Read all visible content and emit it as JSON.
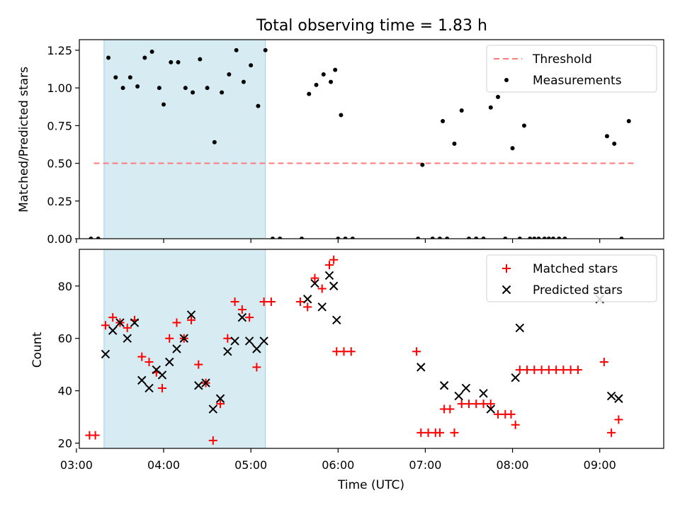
{
  "title": "Total observing time = 1.83 h",
  "chart_data": [
    {
      "type": "scatter",
      "xlabel": "",
      "ylabel": "Matched/Predicted stars",
      "xlim": [
        "03:02",
        "09:44"
      ],
      "ylim": [
        0,
        1.32
      ],
      "yticks": [
        0,
        0.25,
        0.5,
        0.75,
        1.0,
        1.25
      ],
      "ytick_labels": [
        "0.00",
        "0.25",
        "0.50",
        "0.75",
        "1.00",
        "1.25"
      ],
      "highlight_span": [
        "03:19",
        "05:10"
      ],
      "legend": {
        "position": "upper right",
        "entries": [
          "Threshold",
          "Measurements"
        ]
      },
      "threshold": {
        "name": "Threshold",
        "value": 0.5,
        "x_range": [
          "03:12",
          "09:24"
        ],
        "color": "#ff7a7a",
        "style": "dashed"
      },
      "series": [
        {
          "name": "Measurements",
          "marker": "dot",
          "color": "#000000",
          "points": [
            [
              "03:10",
              0.0
            ],
            [
              "03:15",
              0.0
            ],
            [
              "03:22",
              1.2
            ],
            [
              "03:27",
              1.07
            ],
            [
              "03:32",
              1.0
            ],
            [
              "03:37",
              1.07
            ],
            [
              "03:42",
              1.01
            ],
            [
              "03:47",
              1.2
            ],
            [
              "03:52",
              1.24
            ],
            [
              "03:57",
              1.0
            ],
            [
              "04:00",
              0.89
            ],
            [
              "04:05",
              1.17
            ],
            [
              "04:10",
              1.17
            ],
            [
              "04:15",
              1.0
            ],
            [
              "04:20",
              0.97
            ],
            [
              "04:25",
              1.19
            ],
            [
              "04:30",
              1.0
            ],
            [
              "04:35",
              0.64
            ],
            [
              "04:40",
              0.97
            ],
            [
              "04:45",
              1.09
            ],
            [
              "04:50",
              1.25
            ],
            [
              "04:55",
              1.04
            ],
            [
              "05:00",
              1.15
            ],
            [
              "05:05",
              0.88
            ],
            [
              "05:10",
              1.25
            ],
            [
              "05:15",
              0.0
            ],
            [
              "05:20",
              0.0
            ],
            [
              "05:35",
              0.0
            ],
            [
              "05:40",
              0.96
            ],
            [
              "05:45",
              1.02
            ],
            [
              "05:50",
              1.09
            ],
            [
              "05:55",
              1.04
            ],
            [
              "05:58",
              1.12
            ],
            [
              "06:00",
              0.0
            ],
            [
              "06:02",
              0.82
            ],
            [
              "06:05",
              0.0
            ],
            [
              "06:10",
              0.0
            ],
            [
              "06:55",
              0.0
            ],
            [
              "06:58",
              0.49
            ],
            [
              "07:05",
              0.0
            ],
            [
              "07:10",
              0.0
            ],
            [
              "07:12",
              0.78
            ],
            [
              "07:15",
              0.0
            ],
            [
              "07:20",
              0.63
            ],
            [
              "07:25",
              0.85
            ],
            [
              "07:30",
              0.0
            ],
            [
              "07:35",
              0.0
            ],
            [
              "07:40",
              0.0
            ],
            [
              "07:45",
              0.87
            ],
            [
              "07:50",
              0.94
            ],
            [
              "07:55",
              0.0
            ],
            [
              "08:00",
              0.6
            ],
            [
              "08:05",
              0.0
            ],
            [
              "08:08",
              0.75
            ],
            [
              "08:12",
              0.0
            ],
            [
              "08:15",
              0.0
            ],
            [
              "08:18",
              0.0
            ],
            [
              "08:22",
              0.0
            ],
            [
              "08:25",
              0.0
            ],
            [
              "08:28",
              0.0
            ],
            [
              "08:32",
              0.0
            ],
            [
              "08:36",
              0.0
            ],
            [
              "09:05",
              0.68
            ],
            [
              "09:10",
              0.63
            ],
            [
              "09:15",
              0.0
            ],
            [
              "09:20",
              0.78
            ]
          ]
        }
      ]
    },
    {
      "type": "scatter",
      "xlabel": "Time (UTC)",
      "ylabel": "Count",
      "xlim": [
        "03:02",
        "09:44"
      ],
      "ylim": [
        18,
        94
      ],
      "yticks": [
        20,
        40,
        60,
        80
      ],
      "ytick_labels": [
        "20",
        "40",
        "60",
        "80"
      ],
      "xticks": [
        "03:00",
        "04:00",
        "05:00",
        "06:00",
        "07:00",
        "08:00",
        "09:00"
      ],
      "xtick_labels": [
        "03:00",
        "04:00",
        "05:00",
        "06:00",
        "07:00",
        "08:00",
        "09:00"
      ],
      "highlight_span": [
        "03:19",
        "05:10"
      ],
      "legend": {
        "position": "upper right",
        "entries": [
          "Matched stars",
          "Predicted stars"
        ]
      },
      "series": [
        {
          "name": "Matched stars",
          "marker": "plus",
          "color": "#ff0000",
          "points": [
            [
              "03:09",
              23
            ],
            [
              "03:13",
              23
            ],
            [
              "03:20",
              65
            ],
            [
              "03:25",
              68
            ],
            [
              "03:30",
              66
            ],
            [
              "03:35",
              64
            ],
            [
              "03:40",
              67
            ],
            [
              "03:45",
              53
            ],
            [
              "03:50",
              51
            ],
            [
              "03:55",
              47
            ],
            [
              "03:59",
              41
            ],
            [
              "04:04",
              60
            ],
            [
              "04:09",
              66
            ],
            [
              "04:14",
              60
            ],
            [
              "04:19",
              67
            ],
            [
              "04:24",
              50
            ],
            [
              "04:29",
              43
            ],
            [
              "04:34",
              21
            ],
            [
              "04:39",
              35
            ],
            [
              "04:44",
              60
            ],
            [
              "04:49",
              74
            ],
            [
              "04:54",
              71
            ],
            [
              "04:59",
              68
            ],
            [
              "05:04",
              49
            ],
            [
              "05:09",
              74
            ],
            [
              "05:14",
              74
            ],
            [
              "05:34",
              74
            ],
            [
              "05:39",
              72
            ],
            [
              "05:44",
              83
            ],
            [
              "05:49",
              79
            ],
            [
              "05:54",
              88
            ],
            [
              "05:57",
              90
            ],
            [
              "05:59",
              55
            ],
            [
              "06:04",
              55
            ],
            [
              "06:09",
              55
            ],
            [
              "06:54",
              55
            ],
            [
              "06:57",
              24
            ],
            [
              "07:02",
              24
            ],
            [
              "07:07",
              24
            ],
            [
              "07:10",
              24
            ],
            [
              "07:13",
              33
            ],
            [
              "07:17",
              33
            ],
            [
              "07:20",
              24
            ],
            [
              "07:25",
              35
            ],
            [
              "07:30",
              35
            ],
            [
              "07:35",
              35
            ],
            [
              "07:40",
              35
            ],
            [
              "07:45",
              35
            ],
            [
              "07:50",
              31
            ],
            [
              "07:55",
              31
            ],
            [
              "07:59",
              31
            ],
            [
              "08:02",
              27
            ],
            [
              "08:05",
              48
            ],
            [
              "08:10",
              48
            ],
            [
              "08:15",
              48
            ],
            [
              "08:20",
              48
            ],
            [
              "08:25",
              48
            ],
            [
              "08:30",
              48
            ],
            [
              "08:35",
              48
            ],
            [
              "08:40",
              48
            ],
            [
              "08:45",
              48
            ],
            [
              "09:03",
              51
            ],
            [
              "09:08",
              24
            ],
            [
              "09:13",
              29
            ]
          ]
        },
        {
          "name": "Predicted stars",
          "marker": "x",
          "color": "#000000",
          "points": [
            [
              "03:20",
              54
            ],
            [
              "03:25",
              63
            ],
            [
              "03:30",
              66
            ],
            [
              "03:35",
              60
            ],
            [
              "03:40",
              66
            ],
            [
              "03:45",
              44
            ],
            [
              "03:50",
              41
            ],
            [
              "03:55",
              48
            ],
            [
              "03:59",
              46
            ],
            [
              "04:04",
              51
            ],
            [
              "04:09",
              56
            ],
            [
              "04:14",
              60
            ],
            [
              "04:19",
              69
            ],
            [
              "04:24",
              42
            ],
            [
              "04:29",
              43
            ],
            [
              "04:34",
              33
            ],
            [
              "04:39",
              37
            ],
            [
              "04:44",
              55
            ],
            [
              "04:49",
              59
            ],
            [
              "04:54",
              68
            ],
            [
              "04:59",
              59
            ],
            [
              "05:04",
              56
            ],
            [
              "05:09",
              59
            ],
            [
              "05:39",
              75
            ],
            [
              "05:44",
              81
            ],
            [
              "05:49",
              72
            ],
            [
              "05:54",
              84
            ],
            [
              "05:57",
              80
            ],
            [
              "05:59",
              67
            ],
            [
              "06:57",
              49
            ],
            [
              "07:13",
              42
            ],
            [
              "07:23",
              38
            ],
            [
              "07:28",
              41
            ],
            [
              "07:40",
              39
            ],
            [
              "07:45",
              33
            ],
            [
              "08:02",
              45
            ],
            [
              "08:05",
              64
            ],
            [
              "09:00",
              75
            ],
            [
              "09:08",
              38
            ],
            [
              "09:13",
              37
            ]
          ]
        }
      ]
    }
  ]
}
